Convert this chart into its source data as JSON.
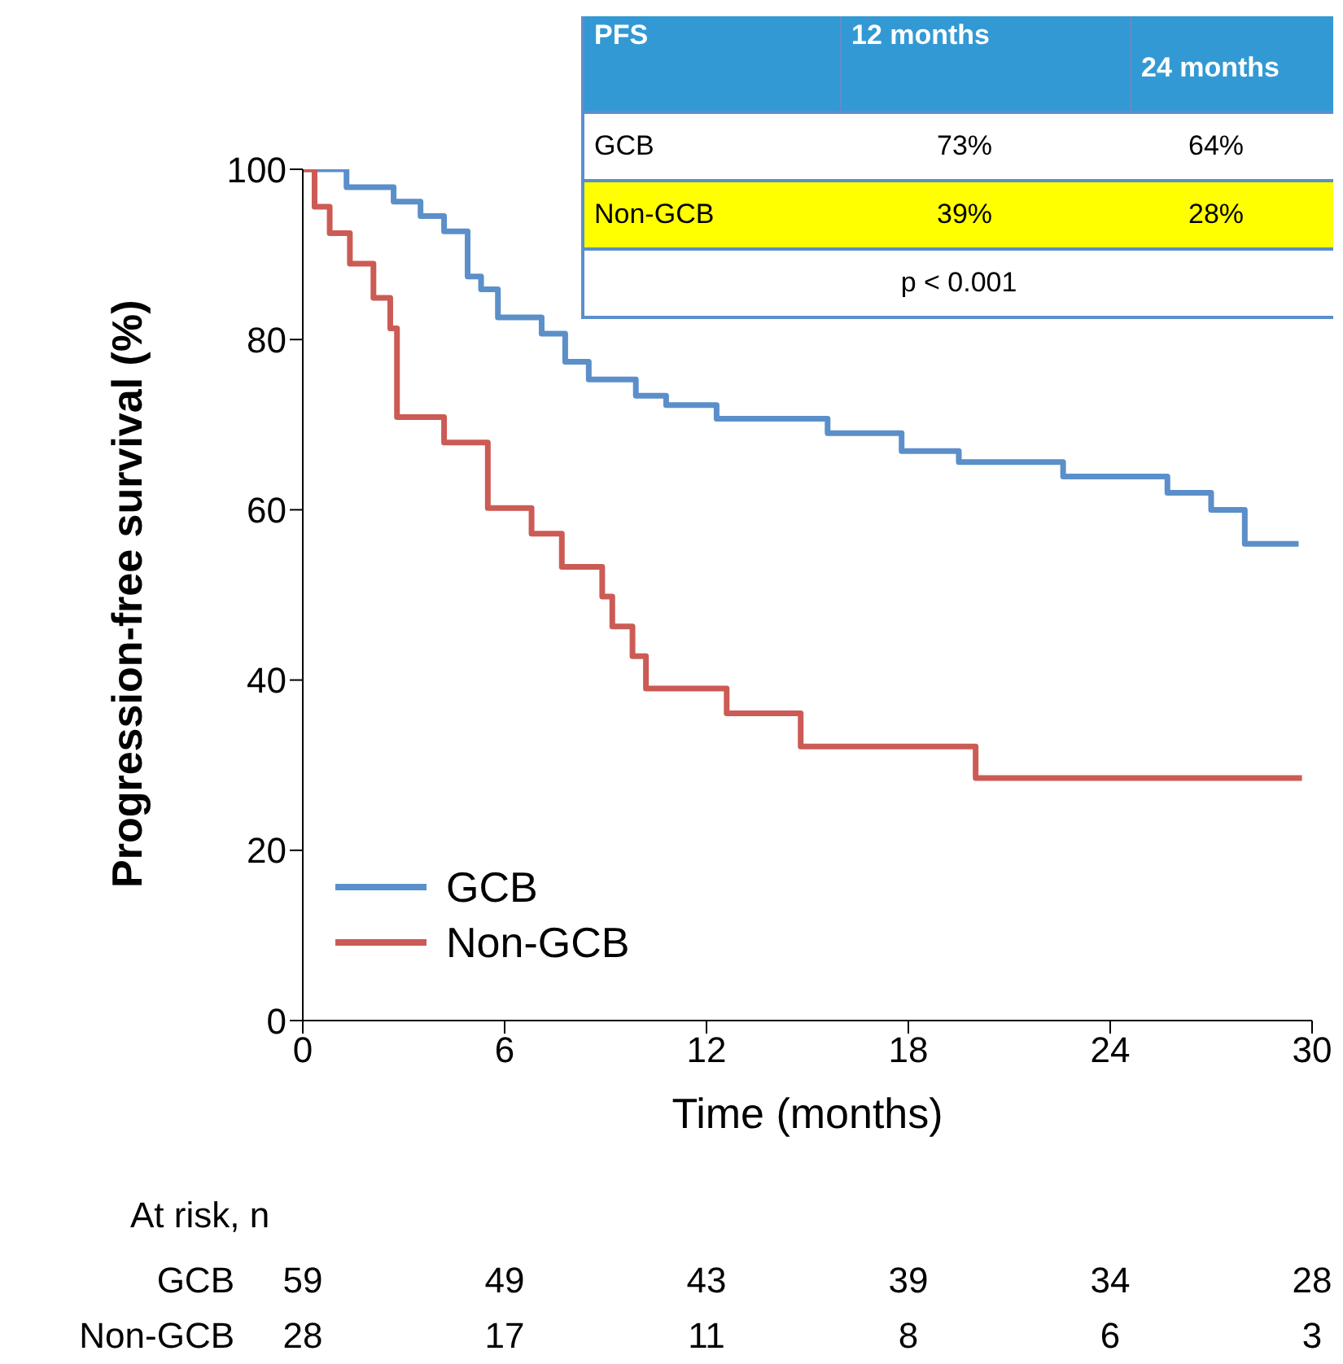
{
  "chart_data": {
    "type": "step",
    "xlabel": "Time (months)",
    "ylabel": "Progression-free survival  (%)",
    "xlim": [
      0,
      30
    ],
    "xticks": [
      0,
      6,
      12,
      18,
      24,
      30
    ],
    "ylim": [
      0,
      100
    ],
    "yticks": [
      0,
      20,
      40,
      60,
      80,
      100
    ],
    "legend": "bottom left",
    "marker": "none",
    "line_style": "solid",
    "series": [
      {
        "name": "GCB",
        "color": "#5b8fc9",
        "x": [
          0,
          1.3,
          2.7,
          3.5,
          4.2,
          4.9,
          5.3,
          5.8,
          7.1,
          7.8,
          8.5,
          9.9,
          10.8,
          12.3,
          15.6,
          17.8,
          19.5,
          22.6,
          25.7,
          27.0,
          28.0,
          29.6
        ],
        "values": [
          100,
          97.9,
          96.2,
          94.5,
          92.7,
          87.4,
          85.9,
          82.6,
          80.7,
          77.4,
          75.3,
          73.4,
          72.3,
          70.7,
          69.0,
          66.9,
          65.6,
          63.9,
          62.0,
          60.0,
          56.0,
          56.0
        ]
      },
      {
        "name": "Non-GCB",
        "color": "#cc5b55",
        "x": [
          0,
          0.35,
          0.8,
          1.4,
          2.1,
          2.6,
          2.8,
          4.2,
          5.5,
          6.8,
          7.7,
          8.9,
          9.2,
          9.8,
          10.2,
          12.6,
          14.8,
          20.0,
          29.7
        ],
        "values": [
          100,
          95.6,
          92.5,
          88.9,
          84.9,
          81.3,
          70.9,
          67.9,
          60.2,
          57.2,
          53.3,
          49.8,
          46.3,
          42.8,
          39.0,
          36.1,
          32.2,
          28.5,
          28.5
        ]
      }
    ],
    "annotations": [
      "At risk, n",
      "GCB",
      "59",
      "49",
      "43",
      "39",
      "34",
      "28",
      "Non-GCB",
      "28",
      "17",
      "11",
      "8",
      "6",
      "3",
      "PFS",
      "12 months",
      "24 months",
      "GCB",
      "73%",
      "64%",
      "Non-GCB",
      "39%",
      "28%",
      "p < 0.001"
    ]
  }
}
